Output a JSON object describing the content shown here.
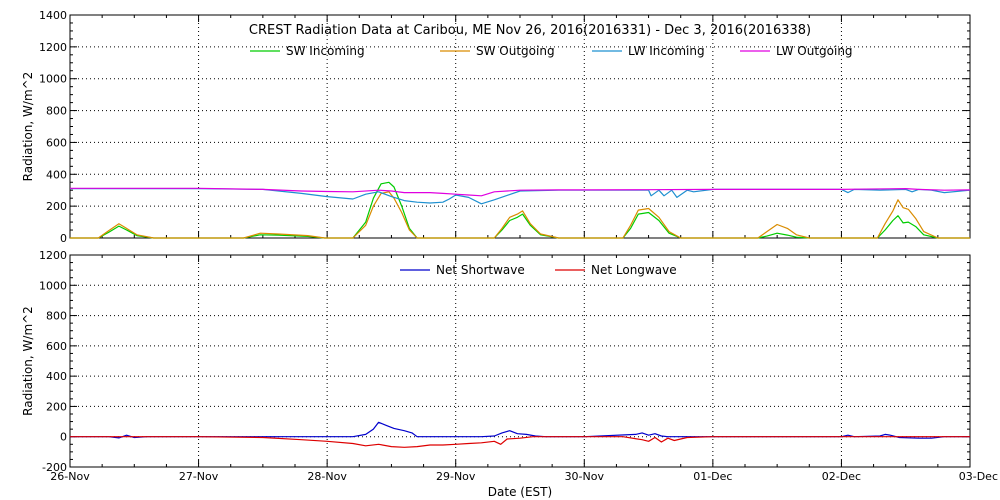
{
  "chart_data": [
    {
      "type": "line",
      "title": "CREST Radiation Data at Caribou, ME   Nov 26, 2016(2016331) - Dec  3, 2016(2016338)",
      "xlabel": "",
      "ylabel": "Radiation, W/m^2",
      "xlim": [
        0,
        7
      ],
      "ylim": [
        0,
        1400
      ],
      "yticks": [
        0,
        200,
        400,
        600,
        800,
        1000,
        1200,
        1400
      ],
      "grid": true,
      "legend_position": "top",
      "series": [
        {
          "name": "SW Incoming",
          "color": "#00cc00",
          "x": [
            0,
            0.22,
            0.3,
            0.38,
            0.44,
            0.52,
            0.65,
            1.0,
            1.35,
            1.48,
            1.62,
            1.85,
            1.98,
            2.2,
            2.3,
            2.36,
            2.42,
            2.48,
            2.52,
            2.58,
            2.64,
            2.7,
            2.8,
            3.0,
            3.3,
            3.36,
            3.42,
            3.48,
            3.52,
            3.58,
            3.66,
            3.8,
            4.0,
            4.3,
            4.36,
            4.42,
            4.5,
            4.58,
            4.66,
            4.75,
            5.0,
            5.35,
            5.42,
            5.5,
            5.58,
            5.65,
            5.75,
            6.0,
            6.28,
            6.34,
            6.4,
            6.44,
            6.48,
            6.52,
            6.58,
            6.64,
            6.75,
            7.0
          ],
          "y": [
            0,
            0,
            35,
            75,
            50,
            15,
            0,
            0,
            0,
            20,
            18,
            10,
            0,
            0,
            100,
            250,
            340,
            350,
            320,
            200,
            60,
            0,
            0,
            0,
            0,
            50,
            110,
            130,
            150,
            80,
            20,
            0,
            0,
            0,
            60,
            150,
            160,
            110,
            30,
            0,
            0,
            0,
            12,
            30,
            18,
            5,
            0,
            0,
            0,
            50,
            110,
            140,
            95,
            100,
            70,
            20,
            0,
            0
          ]
        },
        {
          "name": "SW Outgoing",
          "color": "#d98c00",
          "x": [
            0,
            0.22,
            0.3,
            0.38,
            0.44,
            0.52,
            0.65,
            1.0,
            1.35,
            1.48,
            1.62,
            1.85,
            1.98,
            2.2,
            2.3,
            2.36,
            2.42,
            2.48,
            2.52,
            2.58,
            2.64,
            2.7,
            2.8,
            3.0,
            3.3,
            3.36,
            3.42,
            3.48,
            3.52,
            3.58,
            3.66,
            3.8,
            4.0,
            4.3,
            4.36,
            4.42,
            4.5,
            4.58,
            4.66,
            4.75,
            5.0,
            5.35,
            5.42,
            5.5,
            5.58,
            5.65,
            5.75,
            6.0,
            6.28,
            6.34,
            6.4,
            6.44,
            6.48,
            6.52,
            6.58,
            6.64,
            6.75,
            7.0
          ],
          "y": [
            0,
            0,
            45,
            90,
            60,
            20,
            0,
            0,
            0,
            30,
            25,
            15,
            0,
            0,
            80,
            200,
            280,
            290,
            250,
            160,
            50,
            0,
            0,
            0,
            0,
            60,
            130,
            150,
            170,
            90,
            25,
            0,
            0,
            0,
            80,
            175,
            185,
            130,
            40,
            0,
            0,
            0,
            40,
            85,
            60,
            20,
            0,
            0,
            0,
            90,
            170,
            240,
            190,
            180,
            120,
            40,
            0,
            0
          ]
        },
        {
          "name": "LW Incoming",
          "color": "#1e90d0",
          "x": [
            0,
            0.5,
            1.0,
            1.5,
            1.8,
            2.0,
            2.2,
            2.3,
            2.4,
            2.5,
            2.6,
            2.7,
            2.8,
            2.9,
            2.95,
            3.0,
            3.1,
            3.2,
            3.3,
            3.5,
            3.8,
            4.0,
            4.2,
            4.5,
            4.52,
            4.58,
            4.62,
            4.68,
            4.72,
            4.8,
            4.85,
            5.0,
            5.5,
            6.0,
            6.05,
            6.1,
            6.3,
            6.5,
            6.55,
            6.6,
            6.7,
            6.8,
            7.0
          ],
          "y": [
            310,
            310,
            310,
            305,
            280,
            260,
            245,
            275,
            290,
            260,
            235,
            225,
            220,
            225,
            245,
            270,
            255,
            215,
            240,
            295,
            300,
            300,
            300,
            300,
            265,
            300,
            265,
            300,
            255,
            300,
            290,
            305,
            305,
            305,
            285,
            305,
            300,
            305,
            290,
            305,
            300,
            285,
            300
          ]
        },
        {
          "name": "LW Outgoing",
          "color": "#e000e0",
          "x": [
            0,
            0.5,
            1.0,
            1.5,
            1.8,
            2.0,
            2.2,
            2.4,
            2.5,
            2.6,
            2.7,
            2.8,
            2.9,
            3.0,
            3.1,
            3.2,
            3.3,
            3.5,
            3.8,
            4.0,
            4.5,
            5.0,
            5.5,
            6.0,
            6.5,
            6.6,
            6.8,
            7.0
          ],
          "y": [
            312,
            312,
            312,
            305,
            295,
            292,
            290,
            300,
            295,
            285,
            285,
            285,
            280,
            275,
            270,
            265,
            290,
            300,
            302,
            302,
            303,
            305,
            305,
            305,
            310,
            305,
            300,
            302
          ]
        }
      ]
    },
    {
      "type": "line",
      "title": "",
      "xlabel": "Date (EST)",
      "ylabel": "Radiation, W/m^2",
      "xlim": [
        0,
        7
      ],
      "ylim": [
        -200,
        1200
      ],
      "yticks": [
        -200,
        0,
        200,
        400,
        600,
        800,
        1000,
        1200
      ],
      "x_tick_labels": [
        "26-Nov",
        "27-Nov",
        "28-Nov",
        "29-Nov",
        "30-Nov",
        "01-Dec",
        "02-Dec",
        "03-Dec"
      ],
      "grid": true,
      "legend_position": "top",
      "series": [
        {
          "name": "Net Shortwave",
          "color": "#0000cc",
          "x": [
            0,
            0.3,
            0.38,
            0.44,
            0.5,
            0.6,
            1.0,
            1.4,
            1.8,
            2.0,
            2.2,
            2.3,
            2.36,
            2.4,
            2.46,
            2.52,
            2.6,
            2.66,
            2.7,
            2.8,
            3.0,
            3.2,
            3.3,
            3.36,
            3.42,
            3.48,
            3.55,
            3.62,
            3.7,
            4.0,
            4.4,
            4.45,
            4.5,
            4.55,
            4.6,
            4.65,
            4.7,
            4.8,
            5.0,
            5.5,
            6.0,
            6.05,
            6.1,
            6.3,
            6.34,
            6.38,
            6.45,
            6.6,
            6.7,
            6.8,
            7.0
          ],
          "y": [
            0,
            0,
            -8,
            10,
            -5,
            0,
            0,
            0,
            0,
            0,
            0,
            15,
            50,
            95,
            75,
            55,
            40,
            25,
            0,
            0,
            0,
            0,
            5,
            25,
            40,
            20,
            15,
            5,
            0,
            0,
            15,
            25,
            10,
            20,
            5,
            0,
            0,
            0,
            0,
            0,
            0,
            10,
            0,
            5,
            15,
            10,
            -5,
            -10,
            -10,
            0,
            0
          ]
        },
        {
          "name": "Net Longwave",
          "color": "#dd0000",
          "x": [
            0,
            0.5,
            1.0,
            1.5,
            1.8,
            2.0,
            2.2,
            2.3,
            2.4,
            2.5,
            2.6,
            2.7,
            2.8,
            2.9,
            3.0,
            3.1,
            3.2,
            3.3,
            3.35,
            3.4,
            3.5,
            3.6,
            4.0,
            4.3,
            4.45,
            4.5,
            4.55,
            4.6,
            4.65,
            4.7,
            4.75,
            4.8,
            5.0,
            5.5,
            6.0,
            6.5,
            7.0
          ],
          "y": [
            0,
            0,
            0,
            -5,
            -20,
            -30,
            -45,
            -60,
            -50,
            -65,
            -70,
            -65,
            -55,
            -55,
            -50,
            -45,
            -40,
            -30,
            -50,
            -15,
            -10,
            0,
            0,
            0,
            -20,
            -30,
            -5,
            -35,
            -10,
            -25,
            -15,
            -5,
            0,
            0,
            0,
            0,
            0
          ]
        }
      ]
    }
  ]
}
